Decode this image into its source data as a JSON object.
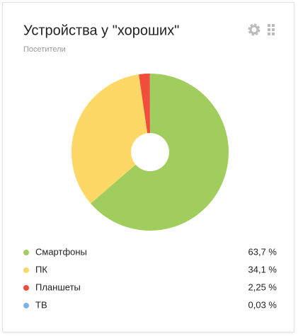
{
  "chart_data": {
    "type": "pie",
    "title": "Устройства у \"хороших\"",
    "subtitle": "Посетители",
    "categories": [
      "Смартфоны",
      "ПК",
      "Планшеты",
      "ТВ"
    ],
    "values": [
      63.7,
      34.1,
      2.25,
      0.03
    ],
    "value_labels": [
      "63,7 %",
      "34,1 %",
      "2,25 %",
      "0,03 %"
    ],
    "colors": [
      "#a1cd5f",
      "#fdd866",
      "#f24d3b",
      "#7db3e8"
    ]
  }
}
